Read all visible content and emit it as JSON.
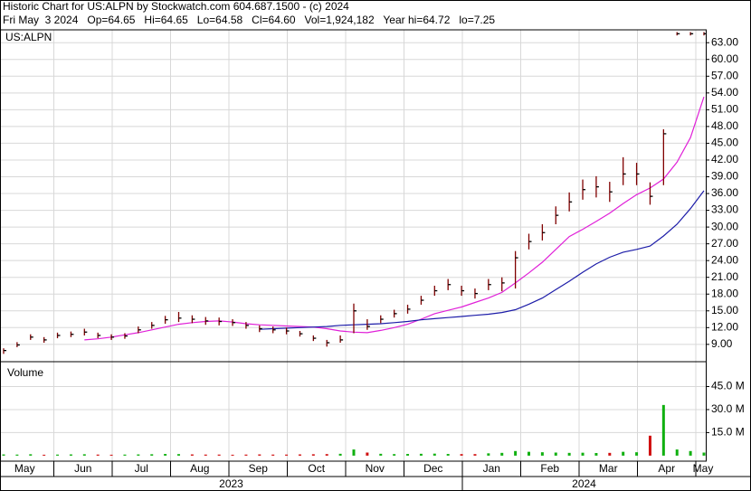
{
  "chart_data": {
    "type": "ohlc",
    "title": "Historic Chart for US:ALPN by Stockwatch.com 604.687.1500 - (c) 2024",
    "subtitle": "Fri May  3 2024   Op=64.65   Hi=64.65   Lo=64.58   Cl=64.60   Vol=1,924,182   Year hi=64.72   lo=7.25",
    "symbol": "US:ALPN",
    "grid": true,
    "ylim": [
      5.9,
      65.3
    ],
    "yticks": [
      {
        "value": 9,
        "label": "9.00"
      },
      {
        "value": 12,
        "label": "12.00"
      },
      {
        "value": 15,
        "label": "15.00"
      },
      {
        "value": 18,
        "label": "18.00"
      },
      {
        "value": 21,
        "label": "21.00"
      },
      {
        "value": 24,
        "label": "24.00"
      },
      {
        "value": 27,
        "label": "27.00"
      },
      {
        "value": 30,
        "label": "30.00"
      },
      {
        "value": 33,
        "label": "33.00"
      },
      {
        "value": 36,
        "label": "36.00"
      },
      {
        "value": 39,
        "label": "39.00"
      },
      {
        "value": 42,
        "label": "42.00"
      },
      {
        "value": 45,
        "label": "45.00"
      },
      {
        "value": 48,
        "label": "48.00"
      },
      {
        "value": 51,
        "label": "51.00"
      },
      {
        "value": 54,
        "label": "54.00"
      },
      {
        "value": 57,
        "label": "57.00"
      },
      {
        "value": 60,
        "label": "60.00"
      },
      {
        "value": 63,
        "label": "63.00"
      }
    ],
    "price": {
      "color": "#800000",
      "high": [
        8.3,
        9.4,
        10.8,
        10.3,
        11.1,
        11.3,
        11.8,
        11.1,
        10.8,
        11.0,
        12.2,
        13.0,
        14.1,
        14.8,
        14.2,
        13.9,
        13.8,
        13.5,
        13.0,
        12.4,
        12.2,
        12.0,
        11.4,
        10.6,
        9.8,
        10.6,
        16.3,
        13.5,
        14.2,
        15.2,
        16.1,
        17.7,
        19.5,
        20.7,
        19.5,
        19.0,
        20.7,
        21.0,
        25.7,
        28.8,
        30.5,
        33.7,
        36.2,
        38.5,
        39.1,
        38.1,
        42.5,
        41.5,
        38.0,
        47.5,
        64.9,
        64.9,
        64.9
      ],
      "low": [
        7.3,
        8.5,
        9.8,
        9.3,
        10.1,
        10.3,
        10.6,
        10.1,
        9.8,
        10.0,
        11.0,
        11.8,
        12.7,
        13.0,
        12.8,
        12.5,
        12.4,
        12.3,
        11.8,
        11.2,
        11.0,
        10.8,
        10.4,
        9.6,
        8.6,
        9.3,
        11.0,
        11.6,
        12.8,
        13.8,
        14.5,
        16.1,
        17.7,
        18.7,
        17.7,
        17.2,
        18.7,
        18.5,
        19.0,
        26.0,
        27.6,
        30.5,
        32.8,
        34.9,
        35.3,
        34.5,
        37.5,
        37.5,
        34.0,
        37.5,
        64.3,
        64.3,
        64.3
      ],
      "close": [
        7.9,
        8.9,
        10.3,
        9.8,
        10.6,
        10.8,
        11.2,
        10.6,
        10.3,
        10.5,
        11.6,
        12.4,
        13.4,
        13.7,
        13.5,
        13.2,
        13.1,
        12.9,
        12.4,
        11.8,
        11.6,
        11.4,
        10.9,
        10.1,
        9.3,
        9.8,
        15.0,
        12.2,
        13.5,
        14.5,
        15.3,
        16.9,
        18.6,
        19.7,
        18.6,
        18.1,
        19.7,
        20.0,
        24.5,
        27.4,
        29.0,
        32.1,
        34.5,
        36.7,
        37.2,
        36.3,
        39.5,
        39.5,
        35.5,
        46.7,
        64.6,
        64.6,
        64.6
      ]
    },
    "averages": [
      {
        "color": "#e020d8",
        "values": [
          null,
          null,
          null,
          null,
          null,
          null,
          9.8,
          10.0,
          10.3,
          10.7,
          11.1,
          11.6,
          12.1,
          12.6,
          12.9,
          13.1,
          13.2,
          13.0,
          12.7,
          12.5,
          12.4,
          12.3,
          12.2,
          12.1,
          11.8,
          11.4,
          11.2,
          11.1,
          11.5,
          12.0,
          12.6,
          13.5,
          14.5,
          15.1,
          15.7,
          16.5,
          17.3,
          18.3,
          20.0,
          21.8,
          23.7,
          26.0,
          28.3,
          29.6,
          31.0,
          32.5,
          34.2,
          35.8,
          37.0,
          38.6,
          41.6,
          46.0,
          53.3
        ]
      },
      {
        "color": "#1c1ca8",
        "values": [
          null,
          null,
          null,
          null,
          null,
          null,
          null,
          null,
          null,
          null,
          null,
          null,
          null,
          null,
          null,
          null,
          null,
          null,
          null,
          11.7,
          11.8,
          11.9,
          12.0,
          12.1,
          12.2,
          12.4,
          12.5,
          12.6,
          12.7,
          12.9,
          13.1,
          13.4,
          13.6,
          13.8,
          14.0,
          14.2,
          14.4,
          14.7,
          15.2,
          16.2,
          17.3,
          18.8,
          20.3,
          21.9,
          23.4,
          24.6,
          25.5,
          26.0,
          26.6,
          28.4,
          30.5,
          33.3,
          36.5
        ]
      }
    ],
    "volume": {
      "label": "Volume",
      "up_color": "#10b010",
      "down_color": "#d01010",
      "ylim": [
        -3.6,
        61.2
      ],
      "yticks": [
        {
          "value": 15,
          "label": "15.0 M"
        },
        {
          "value": 30,
          "label": "30.0 M"
        },
        {
          "value": 45,
          "label": "45.0 M"
        }
      ],
      "values": [
        0.8,
        0.7,
        0.9,
        0.6,
        0.7,
        0.8,
        0.9,
        0.7,
        0.6,
        0.7,
        0.8,
        0.9,
        1.1,
        1.0,
        0.8,
        0.7,
        0.7,
        0.6,
        0.7,
        0.8,
        0.7,
        0.7,
        0.8,
        0.9,
        1.0,
        1.2,
        4.0,
        2.0,
        1.2,
        1.0,
        1.1,
        1.2,
        1.3,
        1.1,
        1.0,
        1.0,
        1.5,
        1.8,
        3.0,
        2.5,
        2.2,
        2.0,
        1.8,
        1.9,
        1.7,
        1.8,
        2.5,
        2.2,
        13.0,
        33.0,
        4.0,
        3.0,
        2.0
      ]
    },
    "months": [
      "May",
      "Jun",
      "Jul",
      "Aug",
      "Sep",
      "Oct",
      "Nov",
      "Dec",
      "Jan",
      "Feb",
      "Mar",
      "Apr",
      "May"
    ],
    "years": [
      "2023",
      "2024"
    ]
  }
}
